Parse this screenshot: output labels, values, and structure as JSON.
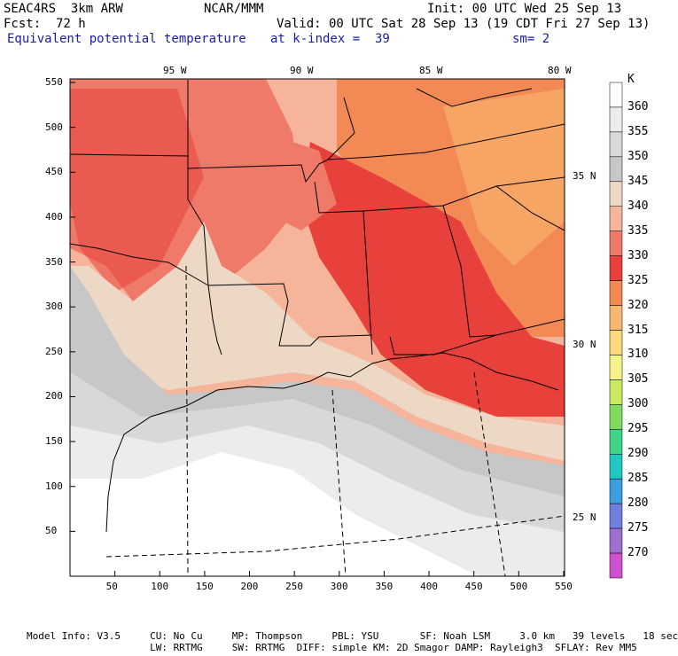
{
  "header": {
    "model": "SEAC4RS  3km ARW",
    "org": "NCAR/MMM",
    "init": "Init: 00 UTC Wed 25 Sep 13",
    "fcst": "Fcst:  72 h",
    "valid": "Valid: 00 UTC Sat 28 Sep 13 (19 CDT Fri 27 Sep 13)",
    "field": "Equivalent potential temperature",
    "level": "at k-index =  39",
    "smooth": "sm= 2"
  },
  "axes": {
    "x_ticks": [
      "50",
      "100",
      "150",
      "200",
      "250",
      "300",
      "350",
      "400",
      "450",
      "500",
      "550"
    ],
    "y_ticks": [
      "50",
      "100",
      "150",
      "200",
      "250",
      "300",
      "350",
      "400",
      "450",
      "500",
      "550"
    ],
    "lon_labels": [
      "95 W",
      "90 W",
      "85 W",
      "80 W"
    ],
    "lat_labels": [
      "35 N",
      "30 N",
      "25 N"
    ]
  },
  "colorbar": {
    "unit": "K",
    "levels": [
      "360",
      "355",
      "350",
      "345",
      "340",
      "335",
      "330",
      "325",
      "320",
      "315",
      "310",
      "305",
      "300",
      "295",
      "290",
      "285",
      "280",
      "275",
      "270"
    ],
    "colors": [
      "#ffffff",
      "#ececec",
      "#d8d8d8",
      "#c7c7c7",
      "#ecd8c4",
      "#f6b49a",
      "#f07a6a",
      "#e8403a",
      "#f38a55",
      "#f8b870",
      "#fada78",
      "#f4f488",
      "#c8ea60",
      "#80dc60",
      "#40d488",
      "#20c8c0",
      "#3ca0e0",
      "#7080e0",
      "#a070d0",
      "#d050d0"
    ]
  },
  "footer": {
    "line1": "Model Info: V3.5     CU: No Cu     MP: Thompson     PBL: YSU       SF: Noah LSM     3.0 km   39 levels   18 sec",
    "line2": "                     LW: RRTMG     SW: RRTMG  DIFF: simple KM: 2D Smagor DAMP: Rayleigh3  SFLAY: Rev MM5"
  }
}
